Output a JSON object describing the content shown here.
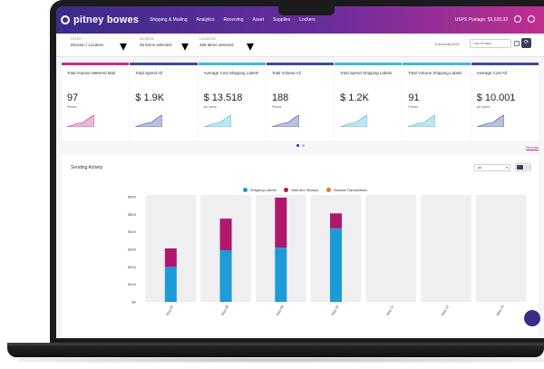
{
  "brand": {
    "logo_text": "pitney bowes"
  },
  "nav": {
    "items": [
      "Shipping & Mailing",
      "Analytics",
      "Receiving",
      "Asset",
      "Supplies",
      "Lockers"
    ],
    "postage_text": "USPS Postage: $3,529.33"
  },
  "filters": {
    "filter": {
      "label": "FILTER",
      "value": "Division / Location"
    },
    "division": {
      "label": "DIVISION",
      "value": "45 items selected"
    },
    "location": {
      "label": "LOCATION",
      "value": "489 items selected"
    },
    "accounts_text": "5 Accounts (ISO)",
    "date_range": "Last 30 days"
  },
  "tiles": [
    {
      "title": "Total Volume Metered Mail",
      "value": "97",
      "unit": "Pieces",
      "color": "#c02e8f"
    },
    {
      "title": "Total Spend All",
      "value": "$ 1.9K",
      "unit": "",
      "color": "#3b4ba0"
    },
    {
      "title": "Average Cost Shipping Labels",
      "value": "$ 13.518",
      "unit": "per piece",
      "color": "#3fb6d8"
    },
    {
      "title": "Total Volume All",
      "value": "188",
      "unit": "Pieces",
      "color": "#3b4ba0"
    },
    {
      "title": "Total Spend Shipping Labels",
      "value": "$ 1.2K",
      "unit": "",
      "color": "#3fb6d8"
    },
    {
      "title": "Total Volume Shipping Labels",
      "value": "91",
      "unit": "Pieces",
      "color": "#3fb6d8"
    },
    {
      "title": "Average Cost All",
      "value": "$ 10.001",
      "unit": "per piece",
      "color": "#3b4ba0"
    }
  ],
  "reorder_label": "Reorder",
  "activity": {
    "title": "Sending Activity",
    "select_value": "All"
  },
  "chart_data": {
    "type": "bar",
    "stacked": true,
    "categories": [
      "May-07",
      "May-08",
      "May-09",
      "May-10",
      "May-11",
      "May-12",
      "May-13"
    ],
    "series": [
      {
        "name": "Shipping Labels",
        "color": "#1c9bd7",
        "values": [
          200,
          295,
          310,
          420,
          0,
          0,
          0
        ]
      },
      {
        "name": "Mail and Stamps",
        "color": "#b0176f",
        "values": [
          105,
          180,
          285,
          85,
          0,
          0,
          0
        ]
      },
      {
        "name": "Manual Transactions",
        "color": "#e87a22",
        "values": [
          0,
          0,
          0,
          0,
          0,
          0,
          0
        ]
      }
    ],
    "ylim": [
      0,
      600
    ],
    "yticks": [
      "$0",
      "$100",
      "$200",
      "$300",
      "$400",
      "$500",
      "$600"
    ],
    "legend_position": "top-center",
    "grid": false
  }
}
